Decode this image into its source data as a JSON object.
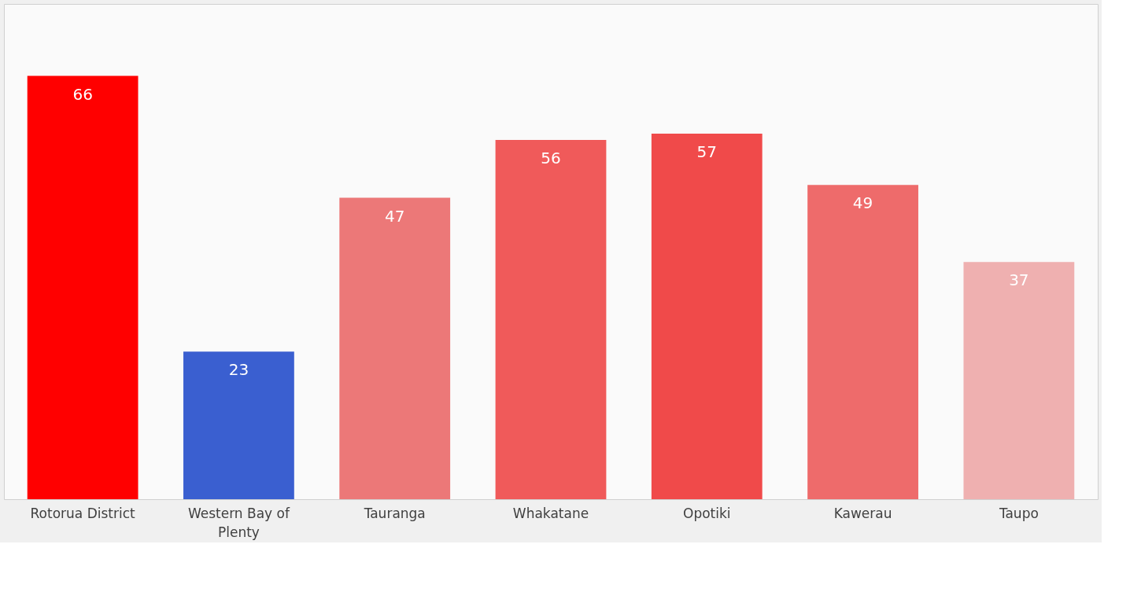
{
  "chart_data": {
    "type": "bar",
    "categories": [
      "Rotorua District",
      "Western Bay of Plenty",
      "Tauranga",
      "Whakatane",
      "Opotiki",
      "Kawerau",
      "Taupo"
    ],
    "values": [
      66,
      23,
      47,
      56,
      57,
      49,
      37
    ],
    "colors": [
      "#ff0000",
      "#3a5fd0",
      "#ec7878",
      "#f05a5a",
      "#f04a4a",
      "#ee6b6b",
      "#efb0b0"
    ],
    "data_labels": true
  }
}
